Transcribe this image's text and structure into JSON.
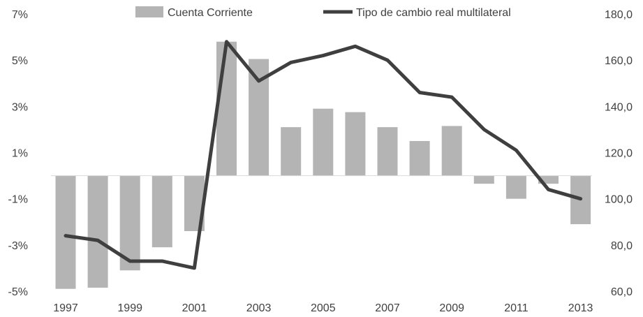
{
  "chart_data": {
    "type": "bar+line",
    "title": "",
    "categories": [
      "1997",
      "1998",
      "1999",
      "2000",
      "2001",
      "2002",
      "2003",
      "2004",
      "2005",
      "2006",
      "2007",
      "2008",
      "2009",
      "2010",
      "2011",
      "2012",
      "2013"
    ],
    "x_tick_labels": [
      "1997",
      "1999",
      "2001",
      "2003",
      "2005",
      "2007",
      "2009",
      "2011",
      "2013"
    ],
    "series": [
      {
        "name": "Cuenta Corriente",
        "type": "bar",
        "axis": "left",
        "color": "#b4b4b4",
        "values": [
          -4.9,
          -4.85,
          -4.1,
          -3.1,
          -2.4,
          5.8,
          5.05,
          2.1,
          2.9,
          2.75,
          2.1,
          1.5,
          2.15,
          -0.35,
          -1.0,
          -0.35,
          -2.1
        ]
      },
      {
        "name": "Tipo de cambio real multilateral",
        "type": "line",
        "axis": "right",
        "color": "#3f3f3f",
        "values": [
          84,
          82,
          73,
          73,
          70,
          168,
          151,
          159,
          162,
          166,
          160,
          146,
          144,
          130,
          121,
          104,
          100
        ]
      }
    ],
    "y_left": {
      "min": -5,
      "max": 7,
      "ticks": [
        -5,
        -3,
        -1,
        1,
        3,
        5,
        7
      ],
      "tick_labels": [
        "-5%",
        "-3%",
        "-1%",
        "1%",
        "3%",
        "5%",
        "7%"
      ]
    },
    "y_right": {
      "min": 60,
      "max": 180,
      "ticks": [
        60,
        80,
        100,
        120,
        140,
        160,
        180
      ],
      "tick_labels": [
        "60,0",
        "80,0",
        "100,0",
        "120,0",
        "140,0",
        "160,0",
        "180,0"
      ]
    },
    "legend_position": "top-center",
    "grid": false
  }
}
